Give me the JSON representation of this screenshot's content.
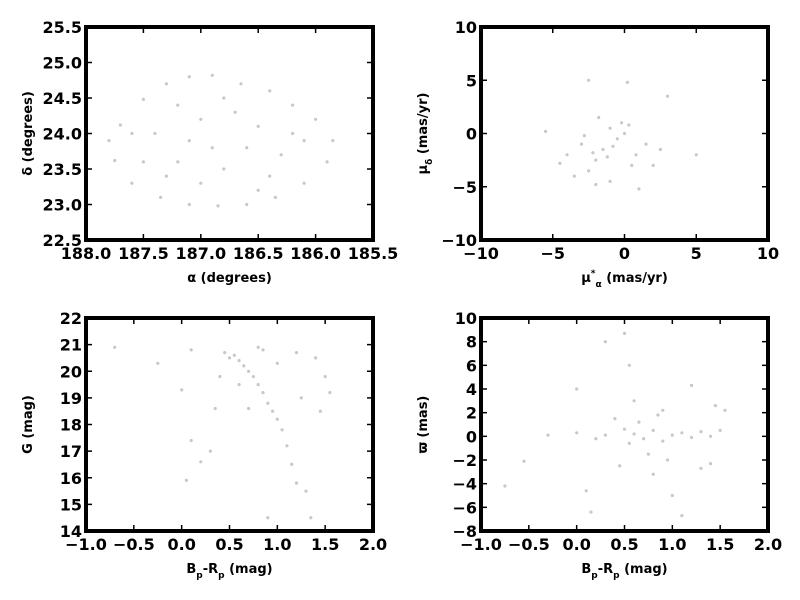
{
  "point_color": "#c8c8c8",
  "chart_data": [
    {
      "type": "scatter",
      "xlabel": {
        "main": "α (degrees)",
        "sub": "",
        "sup": "",
        "tail": ""
      },
      "ylabel": {
        "main": "δ (degrees)",
        "sub": "",
        "sup": "",
        "tail": ""
      },
      "xlim": [
        188.0,
        185.5
      ],
      "ylim": [
        22.5,
        25.5
      ],
      "xticks": [
        "188.0",
        "187.5",
        "187.0",
        "186.5",
        "186.0",
        "185.5"
      ],
      "xtick_values": [
        188.0,
        187.5,
        187.0,
        186.5,
        186.0,
        185.5
      ],
      "yticks": [
        "22.5",
        "23.0",
        "23.5",
        "24.0",
        "24.5",
        "25.0",
        "25.5"
      ],
      "ytick_values": [
        22.5,
        23.0,
        23.5,
        24.0,
        24.5,
        25.0,
        25.5
      ],
      "grid": false,
      "points": [
        [
          187.75,
          23.62
        ],
        [
          187.7,
          24.12
        ],
        [
          187.5,
          24.48
        ],
        [
          187.3,
          24.7
        ],
        [
          187.1,
          24.8
        ],
        [
          186.9,
          24.82
        ],
        [
          186.65,
          24.7
        ],
        [
          186.4,
          24.6
        ],
        [
          186.2,
          24.4
        ],
        [
          186.0,
          24.2
        ],
        [
          185.85,
          23.9
        ],
        [
          185.9,
          23.6
        ],
        [
          186.1,
          23.3
        ],
        [
          186.35,
          23.1
        ],
        [
          186.6,
          23.0
        ],
        [
          186.85,
          22.98
        ],
        [
          187.1,
          23.0
        ],
        [
          187.35,
          23.1
        ],
        [
          187.6,
          23.3
        ],
        [
          187.8,
          23.9
        ],
        [
          187.4,
          24.0
        ],
        [
          187.2,
          23.6
        ],
        [
          187.0,
          24.2
        ],
        [
          186.8,
          23.5
        ],
        [
          186.5,
          24.1
        ],
        [
          186.3,
          23.7
        ],
        [
          186.1,
          23.9
        ],
        [
          187.5,
          23.6
        ],
        [
          187.2,
          24.4
        ],
        [
          186.7,
          24.3
        ],
        [
          186.9,
          23.8
        ],
        [
          187.0,
          23.3
        ],
        [
          186.4,
          23.4
        ],
        [
          186.2,
          24.0
        ],
        [
          187.6,
          24.0
        ],
        [
          187.3,
          23.4
        ],
        [
          186.6,
          23.8
        ],
        [
          186.8,
          24.5
        ],
        [
          187.1,
          23.9
        ],
        [
          186.5,
          23.2
        ]
      ]
    },
    {
      "type": "scatter",
      "xlabel": {
        "main": "μ",
        "sub": "α",
        "sup": "*",
        "tail": " (mas/yr)"
      },
      "ylabel": {
        "main": "μ",
        "sub": "δ",
        "sup": "",
        "tail": " (mas/yr)"
      },
      "xlim": [
        -10,
        10
      ],
      "ylim": [
        -10,
        10
      ],
      "xticks": [
        "−10",
        "−5",
        "0",
        "5",
        "10"
      ],
      "xtick_values": [
        -10,
        -5,
        0,
        5,
        10
      ],
      "yticks": [
        "−10",
        "−5",
        "0",
        "5",
        "10"
      ],
      "ytick_values": [
        -10,
        -5,
        0,
        5,
        10
      ],
      "grid": false,
      "points": [
        [
          -1.5,
          -1.5
        ],
        [
          -2.0,
          -2.5
        ],
        [
          -0.5,
          -0.5
        ],
        [
          0.0,
          0.0
        ],
        [
          -3.0,
          -1.0
        ],
        [
          -4.0,
          -2.0
        ],
        [
          -2.5,
          -3.5
        ],
        [
          -1.0,
          -4.5
        ],
        [
          0.5,
          -3.0
        ],
        [
          1.5,
          -1.0
        ],
        [
          -0.2,
          1.0
        ],
        [
          0.3,
          0.8
        ],
        [
          -5.5,
          0.2
        ],
        [
          -4.5,
          -2.8
        ],
        [
          -3.5,
          -4.0
        ],
        [
          -2.0,
          -4.8
        ],
        [
          1.0,
          -5.2
        ],
        [
          2.0,
          -3.0
        ],
        [
          2.5,
          -1.5
        ],
        [
          -1.0,
          0.5
        ],
        [
          -2.8,
          -0.2
        ],
        [
          0.8,
          -2.0
        ],
        [
          -1.8,
          1.5
        ],
        [
          3.0,
          3.5
        ],
        [
          0.2,
          4.8
        ],
        [
          -2.5,
          5.0
        ],
        [
          5.0,
          -2.0
        ],
        [
          -0.8,
          -1.2
        ],
        [
          -1.2,
          -2.2
        ],
        [
          -2.2,
          -1.8
        ]
      ]
    },
    {
      "type": "scatter",
      "xlabel": {
        "main": "B",
        "sub": "p",
        "sup": "",
        "tail": "-R",
        "sub2": "p",
        "tail2": "  (mag)"
      },
      "ylabel": {
        "main": "G (mag)",
        "sub": "",
        "sup": "",
        "tail": ""
      },
      "xlim": [
        -1.0,
        2.0
      ],
      "ylim": [
        14,
        22
      ],
      "xticks": [
        "−1.0",
        "−0.5",
        "0.0",
        "0.5",
        "1.0",
        "1.5",
        "2.0"
      ],
      "xtick_values": [
        -1.0,
        -0.5,
        0.0,
        0.5,
        1.0,
        1.5,
        2.0
      ],
      "yticks": [
        "14",
        "15",
        "16",
        "17",
        "18",
        "19",
        "20",
        "21",
        "22"
      ],
      "ytick_values": [
        14,
        15,
        16,
        17,
        18,
        19,
        20,
        21,
        22
      ],
      "grid": false,
      "points": [
        [
          0.6,
          20.4
        ],
        [
          0.65,
          20.2
        ],
        [
          0.7,
          20.0
        ],
        [
          0.55,
          20.6
        ],
        [
          0.75,
          19.8
        ],
        [
          0.8,
          19.5
        ],
        [
          0.85,
          19.2
        ],
        [
          0.9,
          18.8
        ],
        [
          0.95,
          18.5
        ],
        [
          1.0,
          18.2
        ],
        [
          1.05,
          17.8
        ],
        [
          1.1,
          17.2
        ],
        [
          1.15,
          16.5
        ],
        [
          1.2,
          15.8
        ],
        [
          1.3,
          15.5
        ],
        [
          0.45,
          20.7
        ],
        [
          0.5,
          20.5
        ],
        [
          0.85,
          20.8
        ],
        [
          1.2,
          20.7
        ],
        [
          1.4,
          20.5
        ],
        [
          1.5,
          19.8
        ],
        [
          1.55,
          19.2
        ],
        [
          1.45,
          18.5
        ],
        [
          0.1,
          20.8
        ],
        [
          -0.7,
          20.9
        ],
        [
          -0.25,
          20.3
        ],
        [
          0.0,
          19.3
        ],
        [
          0.1,
          17.4
        ],
        [
          0.3,
          17.0
        ],
        [
          0.35,
          18.6
        ],
        [
          0.2,
          16.6
        ],
        [
          0.05,
          15.9
        ],
        [
          0.9,
          14.5
        ],
        [
          1.35,
          14.5
        ],
        [
          0.7,
          18.6
        ],
        [
          0.6,
          19.5
        ],
        [
          1.0,
          20.3
        ],
        [
          1.25,
          19.0
        ],
        [
          0.4,
          19.8
        ],
        [
          0.8,
          20.9
        ]
      ]
    },
    {
      "type": "scatter",
      "xlabel": {
        "main": "B",
        "sub": "p",
        "sup": "",
        "tail": "-R",
        "sub2": "p",
        "tail2": "  (mag)"
      },
      "ylabel": {
        "main": "ϖ (mas)",
        "sub": "",
        "sup": "",
        "tail": ""
      },
      "xlim": [
        -1.0,
        2.0
      ],
      "ylim": [
        -8,
        10
      ],
      "xticks": [
        "−1.0",
        "−0.5",
        "0.0",
        "0.5",
        "1.0",
        "1.5",
        "2.0"
      ],
      "xtick_values": [
        -1.0,
        -0.5,
        0.0,
        0.5,
        1.0,
        1.5,
        2.0
      ],
      "yticks": [
        "−8",
        "−6",
        "−4",
        "−2",
        "0",
        "2",
        "4",
        "6",
        "8",
        "10"
      ],
      "ytick_values": [
        -8,
        -6,
        -4,
        -2,
        0,
        2,
        4,
        6,
        8,
        10
      ],
      "grid": false,
      "points": [
        [
          0.6,
          0.2
        ],
        [
          0.7,
          -0.2
        ],
        [
          0.8,
          0.5
        ],
        [
          0.9,
          -0.4
        ],
        [
          1.0,
          0.1
        ],
        [
          1.1,
          0.3
        ],
        [
          1.2,
          -0.1
        ],
        [
          1.3,
          0.4
        ],
        [
          1.4,
          0.0
        ],
        [
          1.5,
          0.5
        ],
        [
          0.5,
          0.6
        ],
        [
          0.55,
          -0.6
        ],
        [
          0.65,
          1.2
        ],
        [
          0.75,
          -1.5
        ],
        [
          0.85,
          1.8
        ],
        [
          0.95,
          -2.0
        ],
        [
          0.4,
          1.5
        ],
        [
          0.45,
          -2.5
        ],
        [
          0.3,
          0.1
        ],
        [
          0.2,
          -0.2
        ],
        [
          0.0,
          0.3
        ],
        [
          -0.3,
          0.1
        ],
        [
          -0.75,
          -4.2
        ],
        [
          -0.55,
          -2.1
        ],
        [
          0.0,
          4.0
        ],
        [
          0.3,
          8.0
        ],
        [
          0.5,
          8.7
        ],
        [
          0.55,
          6.0
        ],
        [
          0.1,
          -4.6
        ],
        [
          0.15,
          -6.4
        ],
        [
          1.0,
          -5.0
        ],
        [
          1.1,
          -6.7
        ],
        [
          1.2,
          4.3
        ],
        [
          1.45,
          2.6
        ],
        [
          1.55,
          2.2
        ],
        [
          1.4,
          -2.3
        ],
        [
          1.3,
          -2.7
        ],
        [
          0.8,
          -3.2
        ],
        [
          0.6,
          3.0
        ],
        [
          0.9,
          2.2
        ]
      ]
    }
  ]
}
